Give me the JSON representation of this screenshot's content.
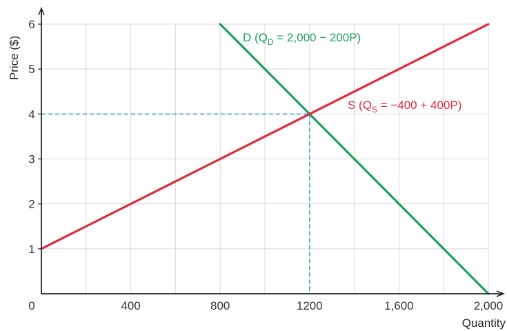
{
  "chart_data": {
    "type": "line",
    "xlabel": "Quantity",
    "ylabel": "Price ($)",
    "origin_label": "0",
    "xlim": [
      0,
      2000
    ],
    "ylim": [
      0,
      6
    ],
    "grid": true,
    "x_ticks": [
      200,
      400,
      600,
      800,
      1000,
      1200,
      1400,
      1600,
      1800,
      2000
    ],
    "x_tick_labels": [
      "400",
      "800",
      "1200",
      "1,600",
      "2,000"
    ],
    "x_tick_label_values": [
      400,
      800,
      1200,
      1600,
      2000
    ],
    "y_ticks": [
      1,
      2,
      3,
      4,
      5,
      6
    ],
    "y_tick_labels": [
      "1",
      "2",
      "3",
      "4",
      "5",
      "6"
    ],
    "series": [
      {
        "name": "D",
        "label_prefix": "D (Q",
        "label_sub": "D",
        "label_suffix": " = 2,000 − 200P)",
        "color": "#1aa05a",
        "points": [
          [
            800,
            6
          ],
          [
            2000,
            0
          ]
        ]
      },
      {
        "name": "S",
        "label_prefix": "S (Q",
        "label_sub": "S",
        "label_suffix": " = −400 + 400P)",
        "color": "#e02b3a",
        "points": [
          [
            0,
            1
          ],
          [
            2000,
            6
          ]
        ]
      }
    ],
    "equilibrium": {
      "x": 1200,
      "y": 4,
      "color": "#2a9fd6"
    },
    "grid_color": "#d8d8d8",
    "axis_color": "#222222"
  }
}
